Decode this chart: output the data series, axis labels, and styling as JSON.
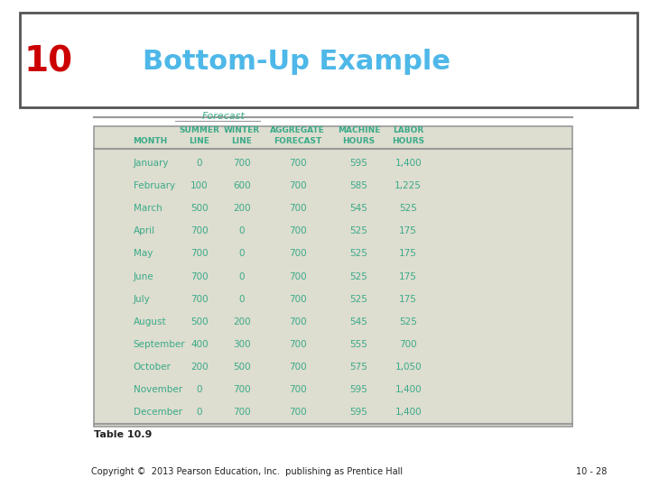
{
  "title_number": "10",
  "title_text": "Bottom-Up Example",
  "title_number_color": "#cc0000",
  "title_text_color": "#4eb8e8",
  "title_bg_color": "#ffffff",
  "table_bg_color": "#ddddd0",
  "header_color": "#3aaa88",
  "data_color": "#3aaa88",
  "forecast_label": "Forecast",
  "col_headers_line1": [
    "",
    "SUMMER",
    "WINTER",
    "AGGREGATE",
    "MACHINE",
    "LABOR"
  ],
  "col_headers_line2": [
    "MONTH",
    "LINE",
    "LINE",
    "FORECAST",
    "HOURS",
    "HOURS"
  ],
  "months": [
    "January",
    "February",
    "March",
    "April",
    "May",
    "June",
    "July",
    "August",
    "September",
    "October",
    "November",
    "December"
  ],
  "summer_line": [
    "0",
    "100",
    "500",
    "700",
    "700",
    "700",
    "700",
    "500",
    "400",
    "200",
    "0",
    "0"
  ],
  "winter_line": [
    "700",
    "600",
    "200",
    "0",
    "0",
    "0",
    "0",
    "200",
    "300",
    "500",
    "700",
    "700"
  ],
  "aggregate_forecast": [
    "700",
    "700",
    "700",
    "700",
    "700",
    "700",
    "700",
    "700",
    "700",
    "700",
    "700",
    "700"
  ],
  "machine_hours": [
    "595",
    "585",
    "545",
    "525",
    "525",
    "525",
    "525",
    "545",
    "555",
    "575",
    "595",
    "595"
  ],
  "labor_hours": [
    "1,400",
    "1,225",
    "525",
    "175",
    "175",
    "175",
    "175",
    "525",
    "700",
    "1,050",
    "1,400",
    "1,400"
  ],
  "table_label": "Table 10.9",
  "footer_text": "Copyright ©  2013 Pearson Education, Inc.  publishing as Prentice Hall",
  "footer_right": "10 - 28",
  "bg_color": "#ffffff",
  "border_color": "#555555",
  "line_color": "#999999"
}
